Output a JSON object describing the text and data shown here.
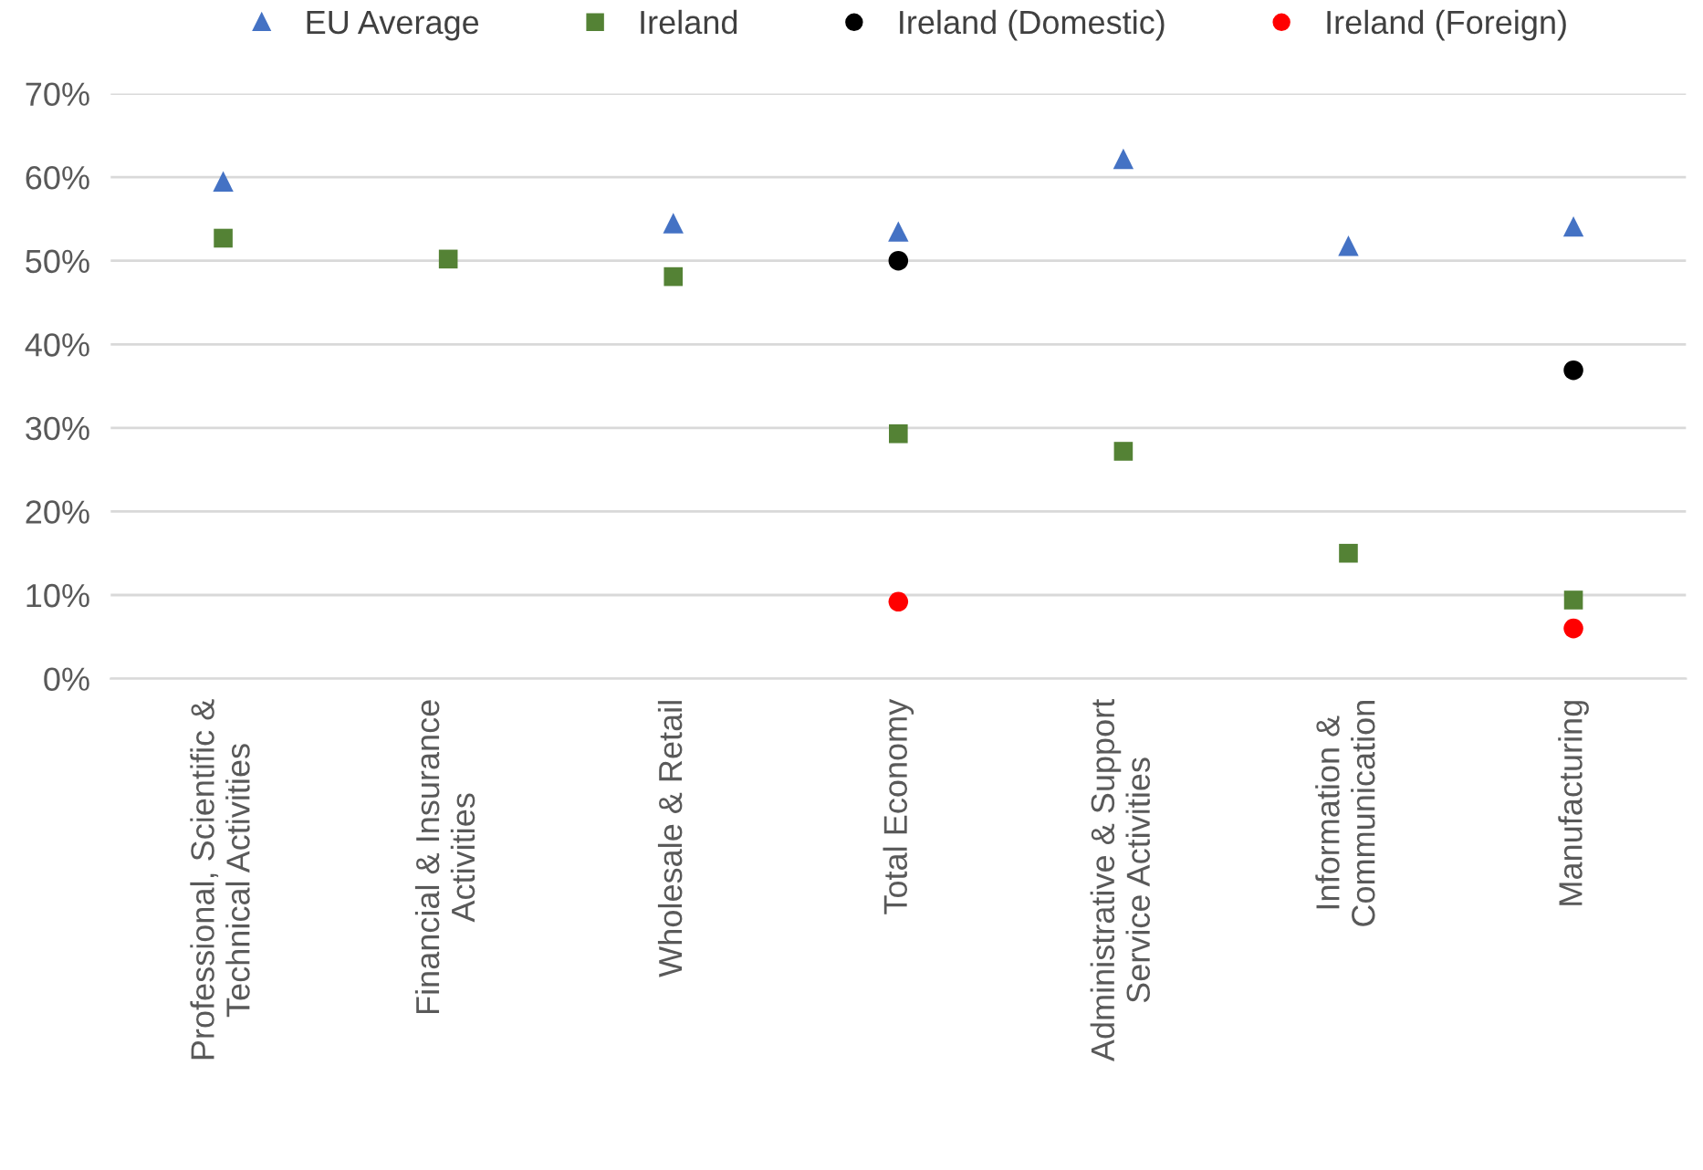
{
  "chart_data": {
    "type": "scatter",
    "categories": [
      "Professional, Scientific &\nTechnical Activities",
      "Financial & Insurance\nActivities",
      "Wholesale & Retail",
      "Total Economy",
      "Administrative & Support\nService Activities",
      "Information &\nCommunication",
      "Manufacturing"
    ],
    "series": [
      {
        "name": "EU Average",
        "color": "#4472c4",
        "marker": "triangle",
        "values": [
          59.5,
          null,
          54.5,
          53.5,
          62.2,
          51.8,
          54.1
        ]
      },
      {
        "name": "Ireland",
        "color": "#548235",
        "marker": "square",
        "values": [
          52.7,
          50.2,
          48.1,
          29.3,
          27.2,
          15.0,
          9.4
        ]
      },
      {
        "name": "Ireland (Domestic)",
        "color": "#000000",
        "marker": "circle",
        "values": [
          null,
          null,
          null,
          50.0,
          null,
          null,
          36.9
        ]
      },
      {
        "name": "Ireland (Foreign)",
        "color": "#ff0000",
        "marker": "circle",
        "values": [
          null,
          null,
          null,
          9.2,
          null,
          null,
          6.0
        ]
      }
    ],
    "ylim": [
      0,
      70
    ],
    "yticks": [
      {
        "value": 0,
        "label": "0%"
      },
      {
        "value": 10,
        "label": "10%"
      },
      {
        "value": 20,
        "label": "20%"
      },
      {
        "value": 30,
        "label": "30%"
      },
      {
        "value": 40,
        "label": "40%"
      },
      {
        "value": 50,
        "label": "50%"
      },
      {
        "value": 60,
        "label": "60%"
      },
      {
        "value": 70,
        "label": "70%"
      }
    ],
    "grid": "y",
    "legend": "top"
  }
}
